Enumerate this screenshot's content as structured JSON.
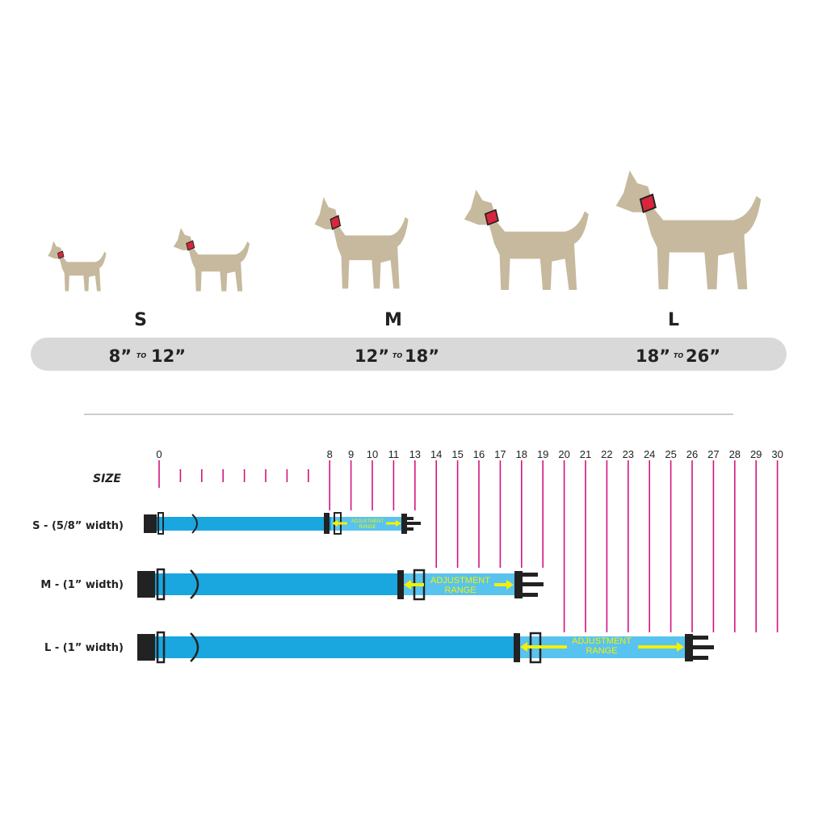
{
  "sizes": [
    {
      "letter": "S",
      "range_from": "8”",
      "range_to": "12”"
    },
    {
      "letter": "M",
      "range_from": "12”",
      "range_to": "18”"
    },
    {
      "letter": "L",
      "range_from": "18”",
      "range_to": "26”"
    }
  ],
  "range_joiner": "TO",
  "ruler": {
    "label": "SIZE",
    "tick_labels": [
      "0",
      "",
      "",
      "",
      "",
      "",
      "",
      "",
      "8",
      "9",
      "10",
      "11",
      "13",
      "14",
      "15",
      "16",
      "17",
      "18",
      "19",
      "20",
      "21",
      "22",
      "23",
      "24",
      "25",
      "26",
      "27",
      "28",
      "29",
      "30"
    ]
  },
  "collars": [
    {
      "label": "S - (5/8” width)",
      "adjustment_label_1": "ADJUSTMENT",
      "adjustment_label_2": "RANGE"
    },
    {
      "label": "M - (1” width)",
      "adjustment_label_1": "ADJUSTMENT",
      "adjustment_label_2": "RANGE"
    },
    {
      "label": "L - (1” width)",
      "adjustment_label_1": "ADJUSTMENT",
      "adjustment_label_2": "RANGE"
    }
  ],
  "colors": {
    "dog": "#c6b99d",
    "collar_red": "#d7263d",
    "strap": "#1aa6df",
    "adjust": "#58c3ee",
    "tick": "#d4147f",
    "arrow": "#f4f000",
    "band": "#d9d9d9"
  }
}
